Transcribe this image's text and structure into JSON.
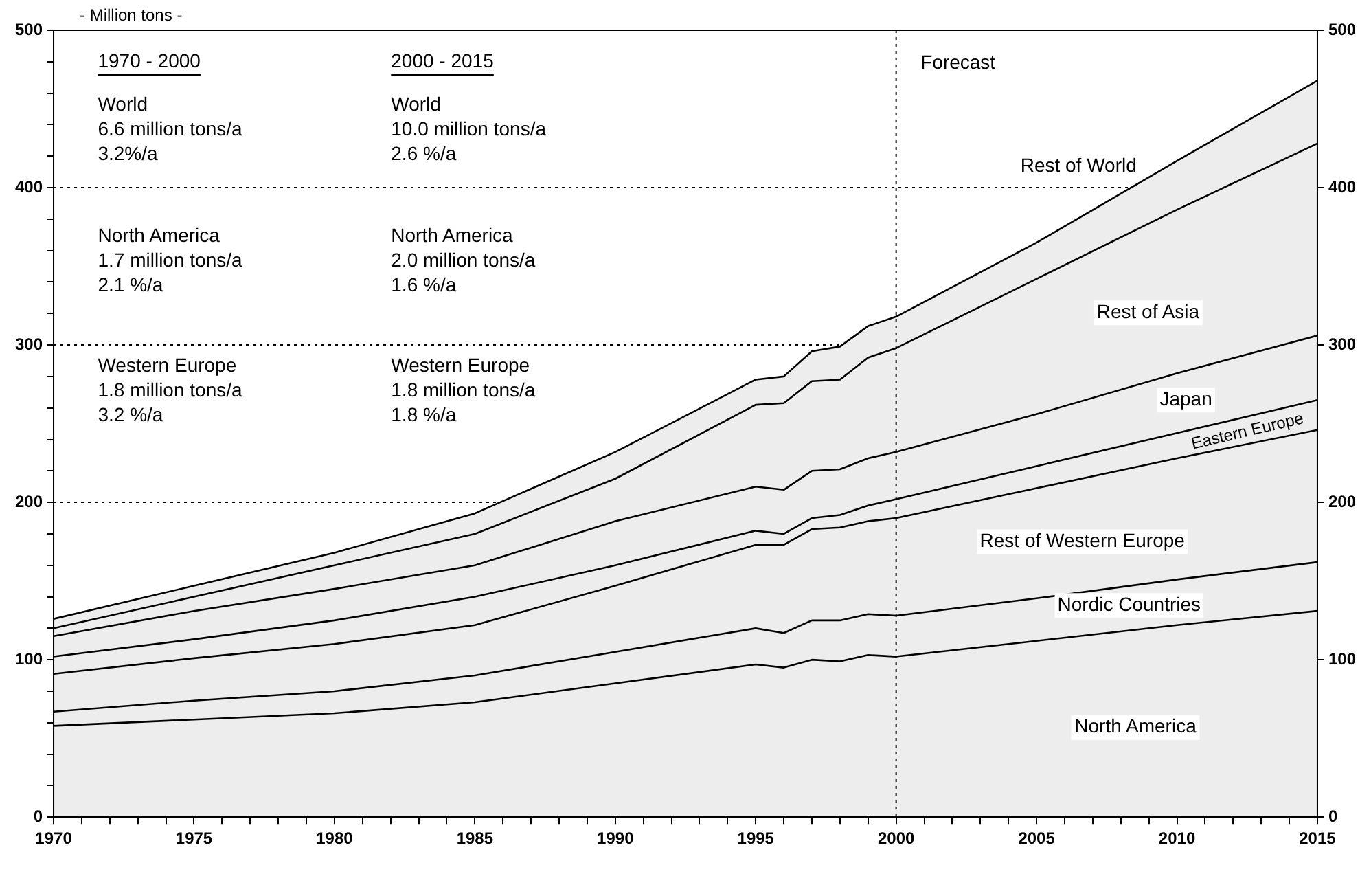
{
  "chart_data": {
    "type": "area",
    "stacked": true,
    "ylabel": "- Million tons -",
    "x": [
      1970,
      1975,
      1980,
      1985,
      1990,
      1995,
      1996,
      1997,
      1998,
      1999,
      2000,
      2005,
      2010,
      2015
    ],
    "series": [
      {
        "name": "North America",
        "color": "#000000",
        "values": [
          58,
          62,
          66,
          73,
          85,
          97,
          95,
          100,
          99,
          103,
          102,
          112,
          122,
          131
        ]
      },
      {
        "name": "Nordic Countries",
        "color": "#000000",
        "values": [
          9,
          12,
          14,
          17,
          20,
          23,
          22,
          25,
          26,
          26,
          26,
          27,
          29,
          31
        ]
      },
      {
        "name": "Rest of Western Europe",
        "color": "#000000",
        "values": [
          24,
          27,
          30,
          32,
          42,
          53,
          56,
          58,
          59,
          59,
          62,
          70,
          77,
          84
        ]
      },
      {
        "name": "Eastern Europe",
        "color": "#000000",
        "values": [
          11,
          12,
          15,
          18,
          13,
          9,
          7,
          7,
          8,
          10,
          12,
          14,
          16,
          19
        ]
      },
      {
        "name": "Japan",
        "color": "#000000",
        "values": [
          13,
          18,
          20,
          20,
          28,
          28,
          28,
          30,
          29,
          30,
          30,
          33,
          38,
          41
        ]
      },
      {
        "name": "Rest of Asia",
        "color": "#000000",
        "values": [
          5,
          9,
          15,
          20,
          27,
          52,
          55,
          57,
          57,
          64,
          66,
          86,
          104,
          122
        ]
      },
      {
        "name": "Rest of World",
        "color": "#000000",
        "values": [
          6,
          7,
          8,
          13,
          17,
          16,
          17,
          19,
          21,
          20,
          20,
          23,
          31,
          40
        ]
      }
    ],
    "xlim": [
      1970,
      2015
    ],
    "xticks": [
      1970,
      {
        "value": 1971,
        "label": null
      },
      {
        "value": 1972,
        "label": null
      },
      {
        "value": 1973,
        "label": null
      },
      {
        "value": 1974,
        "label": null
      },
      1975,
      {
        "value": 1976,
        "label": null
      },
      {
        "value": 1977,
        "label": null
      },
      {
        "value": 1978,
        "label": null
      },
      {
        "value": 1979,
        "label": null
      },
      1980,
      {
        "value": 1981,
        "label": null
      },
      {
        "value": 1982,
        "label": null
      },
      {
        "value": 1983,
        "label": null
      },
      {
        "value": 1984,
        "label": null
      },
      1985,
      {
        "value": 1986,
        "label": null
      },
      {
        "value": 1987,
        "label": null
      },
      {
        "value": 1988,
        "label": null
      },
      {
        "value": 1989,
        "label": null
      },
      1990,
      {
        "value": 1991,
        "label": null
      },
      {
        "value": 1992,
        "label": null
      },
      {
        "value": 1993,
        "label": null
      },
      {
        "value": 1994,
        "label": null
      },
      1995,
      {
        "value": 1996,
        "label": null
      },
      {
        "value": 1997,
        "label": null
      },
      {
        "value": 1998,
        "label": null
      },
      {
        "value": 1999,
        "label": null
      },
      2000,
      {
        "value": 2001,
        "label": null
      },
      {
        "value": 2002,
        "label": null
      },
      {
        "value": 2003,
        "label": null
      },
      {
        "value": 2004,
        "label": null
      },
      2005,
      {
        "value": 2006,
        "label": null
      },
      {
        "value": 2007,
        "label": null
      },
      {
        "value": 2008,
        "label": null
      },
      {
        "value": 2009,
        "label": null
      },
      2010,
      {
        "value": 2011,
        "label": null
      },
      {
        "value": 2012,
        "label": null
      },
      {
        "value": 2013,
        "label": null
      },
      {
        "value": 2014,
        "label": null
      },
      2015
    ],
    "ylim": [
      0,
      500
    ],
    "yticks": [
      0,
      {
        "value": 20,
        "label": null
      },
      {
        "value": 40,
        "label": null
      },
      {
        "value": 60,
        "label": null
      },
      {
        "value": 80,
        "label": null
      },
      100,
      {
        "value": 120,
        "label": null
      },
      {
        "value": 140,
        "label": null
      },
      {
        "value": 160,
        "label": null
      },
      {
        "value": 180,
        "label": null
      },
      200,
      {
        "value": 220,
        "label": null
      },
      {
        "value": 240,
        "label": null
      },
      {
        "value": 260,
        "label": null
      },
      {
        "value": 280,
        "label": null
      },
      300,
      {
        "value": 320,
        "label": null
      },
      {
        "value": 340,
        "label": null
      },
      {
        "value": 360,
        "label": null
      },
      {
        "value": 380,
        "label": null
      },
      400,
      {
        "value": 420,
        "label": null
      },
      {
        "value": 440,
        "label": null
      },
      {
        "value": 460,
        "label": null
      },
      {
        "value": 480,
        "label": null
      },
      500
    ],
    "y2lim": [
      0,
      500
    ],
    "y2ticks": [
      0,
      100,
      200,
      300,
      400,
      500
    ],
    "ref_lines": [
      {
        "axis": "x",
        "value": 2000,
        "line_style": "dotted"
      },
      {
        "axis": "y",
        "value": 400,
        "line_style": "dotted"
      },
      {
        "axis": "y",
        "value": 300,
        "line_style": "dotted"
      },
      {
        "axis": "y",
        "value": 200,
        "line_style": "dotted"
      }
    ],
    "annotations": [
      "1970 - 2000",
      "2000 - 2015",
      "World\n6.6 million tons/a\n3.2%/a",
      "World\n10.0 million tons/a\n2.6 %/a",
      "North America\n1.7 million tons/a\n2.1 %/a",
      "North America\n2.0 million tons/a\n1.6 %/a",
      "Western Europe\n1.8 million tons/a\n3.2 %/a",
      "Western Europe\n1.8 million tons/a\n1.8 %/a",
      "Forecast"
    ],
    "legend": false,
    "grid": false,
    "marker": "none",
    "line_style": "solid"
  }
}
